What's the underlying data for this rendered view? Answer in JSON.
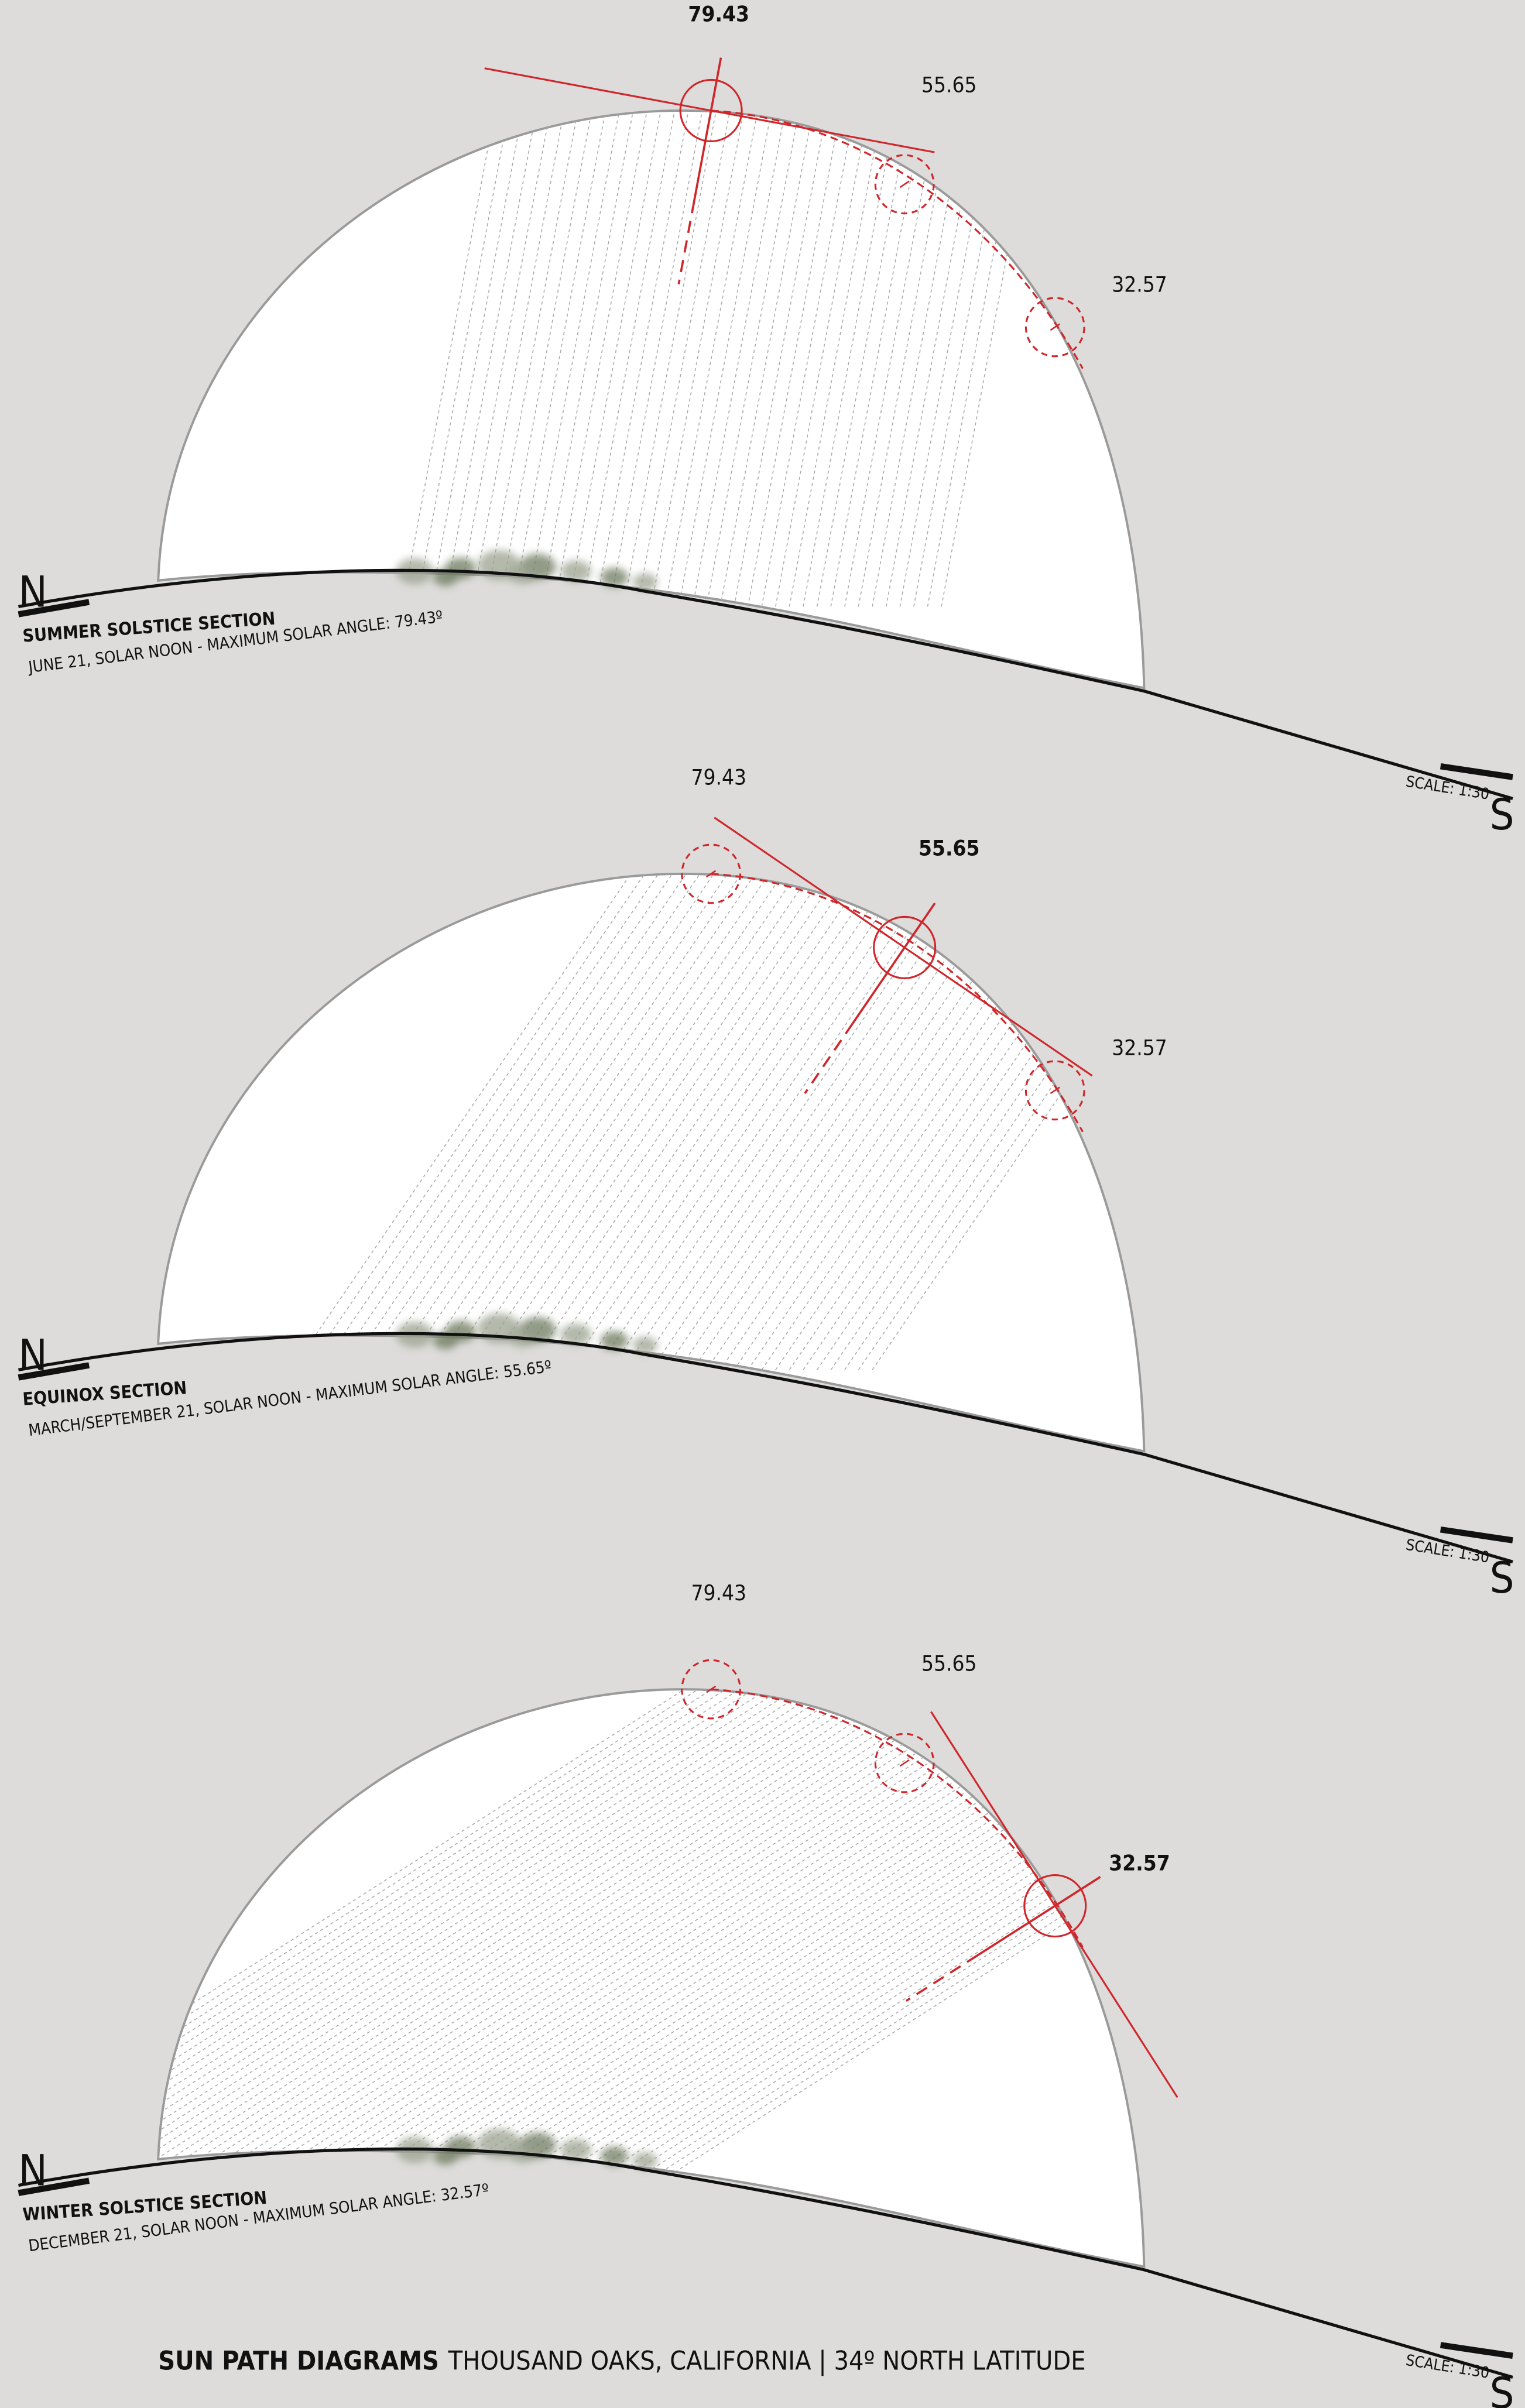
{
  "title": {
    "bold": "SUN PATH DIAGRAMS",
    "rest": "THOUSAND OAKS, CALIFORNIA | 34º NORTH LATITUDE"
  },
  "sections": [
    {
      "title": "SUMMER SOLSTICE SECTION",
      "subtitle": "JUNE 21, SOLAR NOON - MAXIMUM SOLAR ANGLE: 79.43º",
      "north": "N",
      "south": "S",
      "scale": "SCALE: 1:30",
      "angles": [
        "79.43",
        "55.65",
        "32.57"
      ]
    },
    {
      "title": "EQUINOX SECTION",
      "subtitle": "MARCH/SEPTEMBER 21, SOLAR NOON - MAXIMUM SOLAR ANGLE: 55.65º",
      "north": "N",
      "south": "S",
      "scale": "SCALE: 1:30",
      "angles": [
        "79.43",
        "55.65",
        "32.57"
      ]
    },
    {
      "title": "WINTER SOLSTICE SECTION",
      "subtitle": "DECEMBER 21, SOLAR NOON - MAXIMUM SOLAR ANGLE: 32.57º",
      "north": "N",
      "south": "S",
      "scale": "SCALE: 1:30",
      "angles": [
        "79.43",
        "55.65",
        "32.57"
      ]
    }
  ]
}
